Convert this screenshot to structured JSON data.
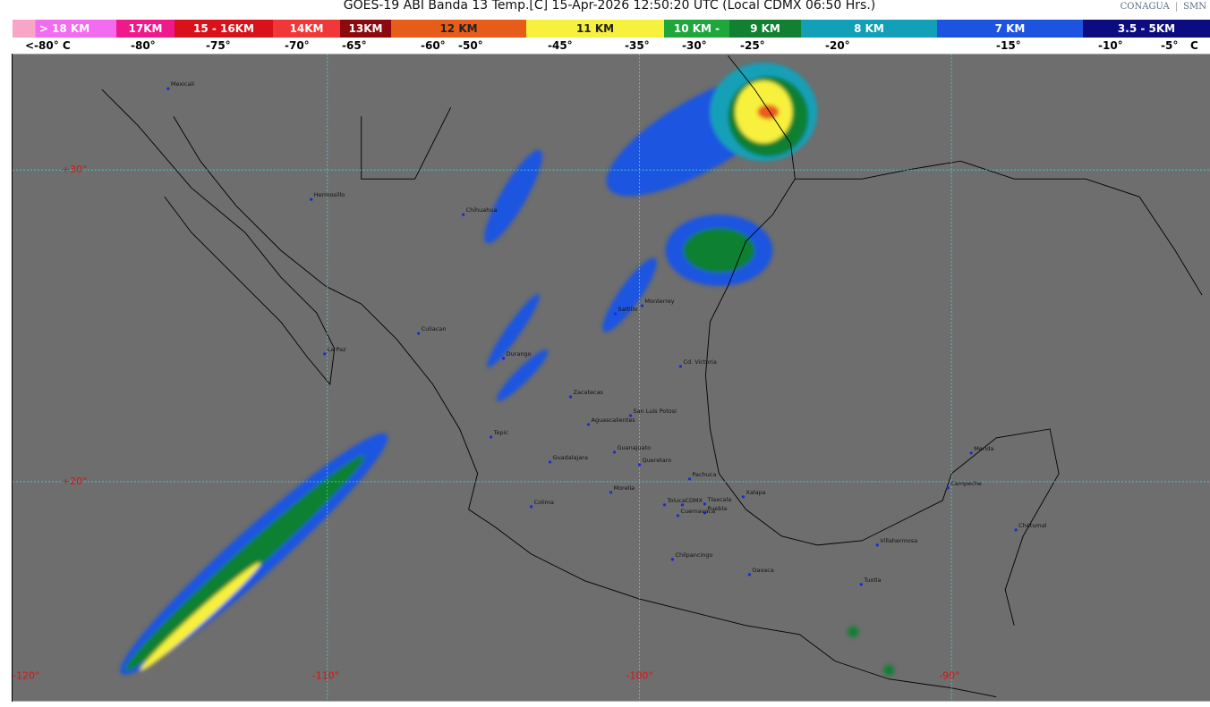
{
  "header": {
    "title": "GOES-19 ABI Banda 13 Temp.[C] 15-Apr-2026 12:50:20 UTC (Local CDMX  06:50 Hrs.)",
    "logos": [
      "CONAGUA",
      "SMN"
    ]
  },
  "scale": [
    {
      "label": "> 18 KM",
      "color": "#f36cf0"
    },
    {
      "label": "17KM",
      "color": "#f0198c"
    },
    {
      "label": "15 - 16KM",
      "color": "#d8111a"
    },
    {
      "label": "14KM",
      "color": "#f03838"
    },
    {
      "label": "13KM",
      "color": "#8c0a0e"
    },
    {
      "label": "12 KM",
      "color": "#e85c1a"
    },
    {
      "label": "11 KM",
      "color": "#f7f03c"
    },
    {
      "label": "10 KM -",
      "color": "#1ea83c"
    },
    {
      "label": "9 KM",
      "color": "#118030"
    },
    {
      "label": "8 KM",
      "color": "#12a0b8"
    },
    {
      "label": "7 KM",
      "color": "#1c54e0"
    },
    {
      "label": "3.5 - 5KM",
      "color": "#0c0c80"
    }
  ],
  "temps": [
    "<-80° C",
    "-80°",
    "-75°",
    "-70°",
    "-65°",
    "-60°",
    "-50°",
    "-45°",
    "-35°",
    "-30°",
    "-25°",
    "-20°",
    "-15°",
    "-10°",
    "-5°",
    "C"
  ],
  "grid": {
    "lat": [
      "+30°",
      "+20°"
    ],
    "lon": [
      "-120°",
      "-110°",
      "-100°",
      "-90°"
    ]
  },
  "cities": [
    "Mexicali",
    "Hermosillo",
    "Chihuahua",
    "La Paz",
    "Culiacan",
    "Durango",
    "Saltillo",
    "Monterrey",
    "Cd. Victoria",
    "Zacatecas",
    "San Luis Potosi",
    "Aguascalientes",
    "Tepic",
    "Guanajuato",
    "Guadalajara",
    "Queretaro",
    "Pachuca",
    "Morelia",
    "Xalapa",
    "Colima",
    "Toluca",
    "CDMX",
    "Tlaxcala",
    "Puebla",
    "Cuernavaca",
    "Chilpancingo",
    "Oaxaca",
    "Villahermosa",
    "Tuxtla",
    "Merida",
    "Campeche",
    "Chetumal"
  ]
}
